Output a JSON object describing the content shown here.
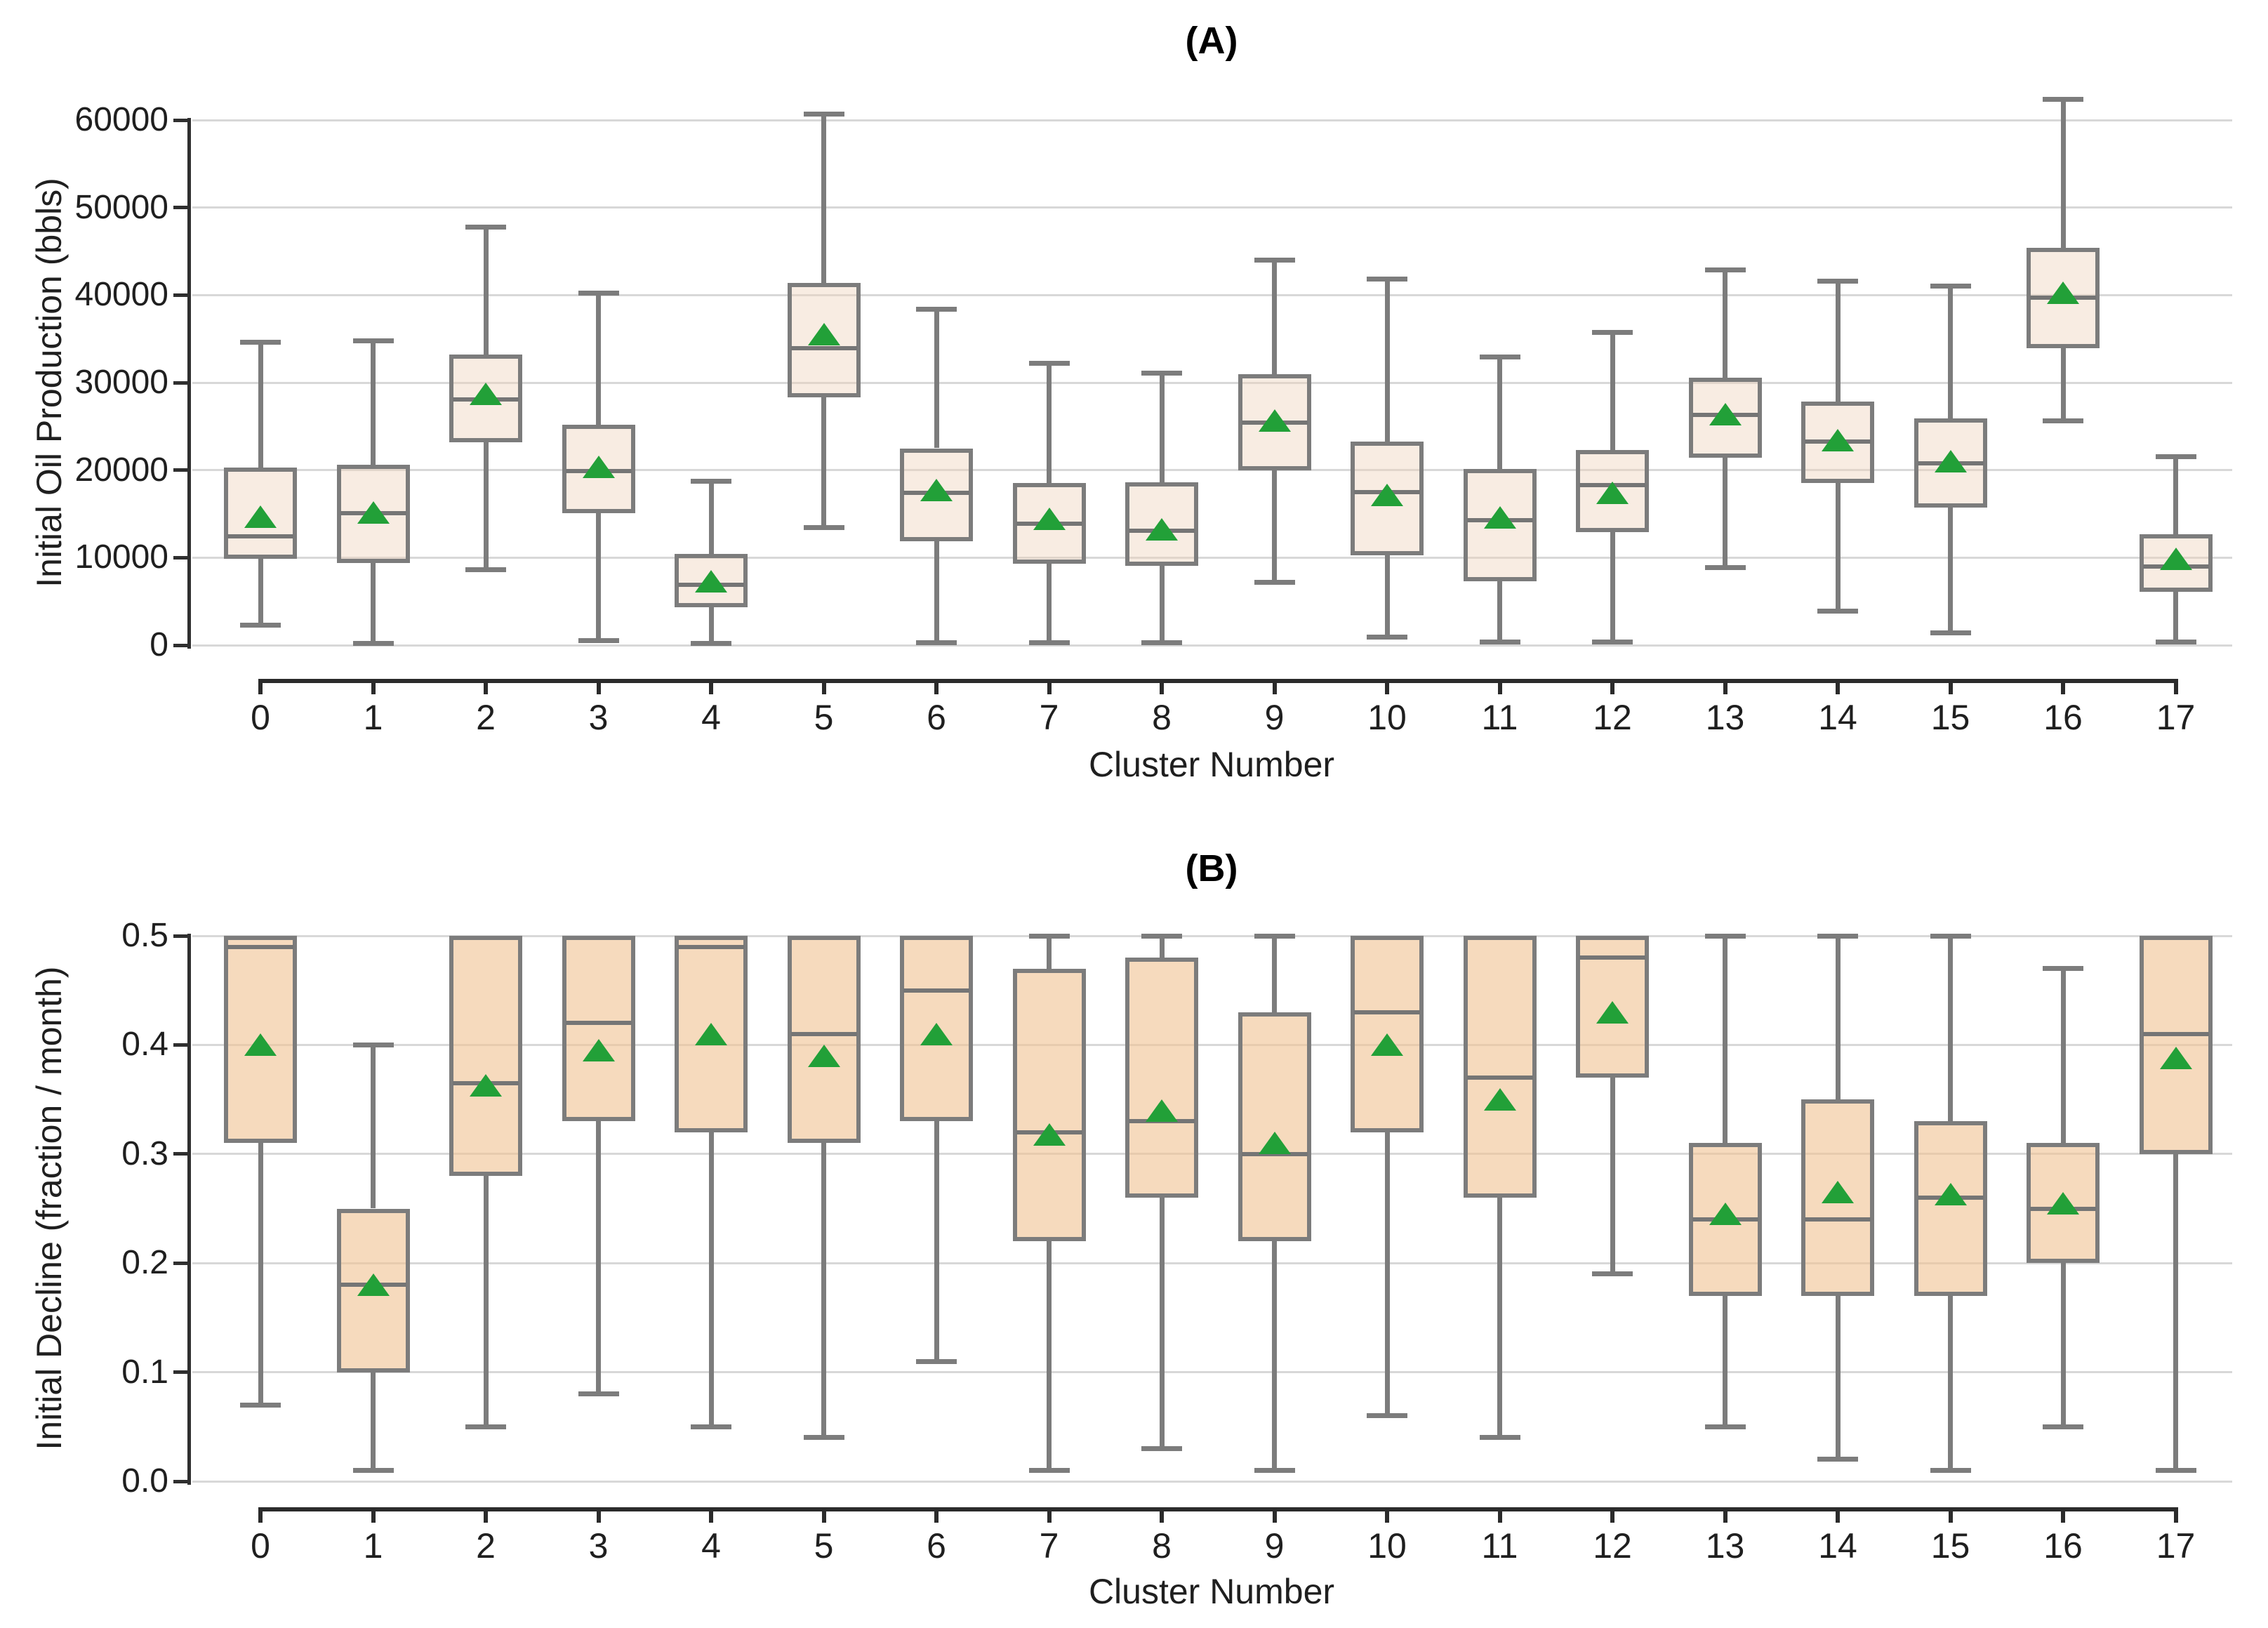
{
  "figure": {
    "background": "#ffffff",
    "panels": [
      "A",
      "B"
    ]
  },
  "colors": {
    "box_fill_A": "rgba(238,209,185,0.42)",
    "box_fill_B": "rgba(240,196,148,0.62)",
    "box_edge": "#7c7c7c",
    "whisker": "#7c7c7c",
    "median": "#757575",
    "mean_marker_green": "#22a038",
    "gridline": "#d8d8d8",
    "axis_spine": "#2f2f2f",
    "text": "#1f1f1f"
  },
  "icons": {
    "mean_marker": "triangle-up-icon"
  },
  "chart_data": [
    {
      "type": "box",
      "panel": "A",
      "title": "(A)",
      "ylabel": "Initial Oil Production (bbls)",
      "xlabel": "Cluster Number",
      "grid": true,
      "legend": "none",
      "categories": [
        "0",
        "1",
        "2",
        "3",
        "4",
        "5",
        "6",
        "7",
        "8",
        "9",
        "10",
        "11",
        "12",
        "13",
        "14",
        "15",
        "16",
        "17"
      ],
      "yticks": [
        0,
        10000,
        20000,
        30000,
        40000,
        50000,
        60000
      ],
      "ytick_labels": [
        "0",
        "10000",
        "20000",
        "30000",
        "40000",
        "50000",
        "60000"
      ],
      "ylim": [
        0,
        63500
      ],
      "stats": [
        {
          "cluster": "0",
          "whisker_low": 2300,
          "q1": 9900,
          "median": 12400,
          "q3": 20300,
          "whisker_high": 34600,
          "mean": 14700
        },
        {
          "cluster": "1",
          "whisker_low": 200,
          "q1": 9400,
          "median": 15100,
          "q3": 20600,
          "whisker_high": 34800,
          "mean": 15200
        },
        {
          "cluster": "2",
          "whisker_low": 8600,
          "q1": 23200,
          "median": 28100,
          "q3": 33200,
          "whisker_high": 47800,
          "mean": 28700
        },
        {
          "cluster": "3",
          "whisker_low": 500,
          "q1": 15100,
          "median": 19900,
          "q3": 25200,
          "whisker_high": 40200,
          "mean": 20400
        },
        {
          "cluster": "4",
          "whisker_low": 200,
          "q1": 4300,
          "median": 6900,
          "q3": 10400,
          "whisker_high": 18700,
          "mean": 7300
        },
        {
          "cluster": "5",
          "whisker_low": 13400,
          "q1": 28300,
          "median": 33900,
          "q3": 41400,
          "whisker_high": 60700,
          "mean": 35500
        },
        {
          "cluster": "6",
          "whisker_low": 300,
          "q1": 11900,
          "median": 17400,
          "q3": 22500,
          "whisker_high": 38400,
          "mean": 17700
        },
        {
          "cluster": "7",
          "whisker_low": 300,
          "q1": 9300,
          "median": 13900,
          "q3": 18500,
          "whisker_high": 32200,
          "mean": 14400
        },
        {
          "cluster": "8",
          "whisker_low": 300,
          "q1": 9100,
          "median": 13100,
          "q3": 18600,
          "whisker_high": 31100,
          "mean": 13200
        },
        {
          "cluster": "9",
          "whisker_low": 7200,
          "q1": 20000,
          "median": 25400,
          "q3": 31000,
          "whisker_high": 44000,
          "mean": 25700
        },
        {
          "cluster": "10",
          "whisker_low": 900,
          "q1": 10300,
          "median": 17500,
          "q3": 23300,
          "whisker_high": 41800,
          "mean": 17200
        },
        {
          "cluster": "11",
          "whisker_low": 400,
          "q1": 7300,
          "median": 14300,
          "q3": 20100,
          "whisker_high": 32900,
          "mean": 14600
        },
        {
          "cluster": "12",
          "whisker_low": 400,
          "q1": 12900,
          "median": 18300,
          "q3": 22300,
          "whisker_high": 35700,
          "mean": 17400
        },
        {
          "cluster": "13",
          "whisker_low": 8900,
          "q1": 21400,
          "median": 26300,
          "q3": 30600,
          "whisker_high": 42900,
          "mean": 26400
        },
        {
          "cluster": "14",
          "whisker_low": 3900,
          "q1": 18500,
          "median": 23300,
          "q3": 27800,
          "whisker_high": 41600,
          "mean": 23400
        },
        {
          "cluster": "15",
          "whisker_low": 1400,
          "q1": 15700,
          "median": 20800,
          "q3": 25900,
          "whisker_high": 41000,
          "mean": 21000
        },
        {
          "cluster": "16",
          "whisker_low": 25600,
          "q1": 33900,
          "median": 39700,
          "q3": 45400,
          "whisker_high": 62400,
          "mean": 40300
        },
        {
          "cluster": "17",
          "whisker_low": 400,
          "q1": 6100,
          "median": 9000,
          "q3": 12700,
          "whisker_high": 21500,
          "mean": 9900
        }
      ]
    },
    {
      "type": "box",
      "panel": "B",
      "title": "(B)",
      "ylabel": "Initial Decline (fraction / month)",
      "xlabel": "Cluster Number",
      "grid": true,
      "legend": "none",
      "categories": [
        "0",
        "1",
        "2",
        "3",
        "4",
        "5",
        "6",
        "7",
        "8",
        "9",
        "10",
        "11",
        "12",
        "13",
        "14",
        "15",
        "16",
        "17"
      ],
      "yticks": [
        0.0,
        0.1,
        0.2,
        0.3,
        0.4,
        0.5
      ],
      "ytick_labels": [
        "0.0",
        "0.1",
        "0.2",
        "0.3",
        "0.4",
        "0.5"
      ],
      "ylim": [
        0,
        0.5
      ],
      "stats": [
        {
          "cluster": "0",
          "whisker_low": 0.07,
          "q1": 0.31,
          "median": 0.49,
          "q3": 0.5,
          "whisker_high": 0.5,
          "mean": 0.4
        },
        {
          "cluster": "1",
          "whisker_low": 0.01,
          "q1": 0.1,
          "median": 0.18,
          "q3": 0.25,
          "whisker_high": 0.4,
          "mean": 0.18
        },
        {
          "cluster": "2",
          "whisker_low": 0.05,
          "q1": 0.28,
          "median": 0.365,
          "q3": 0.5,
          "whisker_high": 0.5,
          "mean": 0.363
        },
        {
          "cluster": "3",
          "whisker_low": 0.08,
          "q1": 0.33,
          "median": 0.42,
          "q3": 0.5,
          "whisker_high": 0.5,
          "mean": 0.395
        },
        {
          "cluster": "4",
          "whisker_low": 0.05,
          "q1": 0.32,
          "median": 0.49,
          "q3": 0.5,
          "whisker_high": 0.5,
          "mean": 0.41
        },
        {
          "cluster": "5",
          "whisker_low": 0.04,
          "q1": 0.31,
          "median": 0.41,
          "q3": 0.5,
          "whisker_high": 0.5,
          "mean": 0.39
        },
        {
          "cluster": "6",
          "whisker_low": 0.11,
          "q1": 0.33,
          "median": 0.45,
          "q3": 0.5,
          "whisker_high": 0.5,
          "mean": 0.41
        },
        {
          "cluster": "7",
          "whisker_low": 0.01,
          "q1": 0.22,
          "median": 0.32,
          "q3": 0.47,
          "whisker_high": 0.5,
          "mean": 0.318
        },
        {
          "cluster": "8",
          "whisker_low": 0.03,
          "q1": 0.26,
          "median": 0.33,
          "q3": 0.48,
          "whisker_high": 0.5,
          "mean": 0.34
        },
        {
          "cluster": "9",
          "whisker_low": 0.01,
          "q1": 0.22,
          "median": 0.3,
          "q3": 0.43,
          "whisker_high": 0.5,
          "mean": 0.31
        },
        {
          "cluster": "10",
          "whisker_low": 0.06,
          "q1": 0.32,
          "median": 0.43,
          "q3": 0.5,
          "whisker_high": 0.5,
          "mean": 0.4
        },
        {
          "cluster": "11",
          "whisker_low": 0.04,
          "q1": 0.26,
          "median": 0.37,
          "q3": 0.5,
          "whisker_high": 0.5,
          "mean": 0.35
        },
        {
          "cluster": "12",
          "whisker_low": 0.19,
          "q1": 0.37,
          "median": 0.48,
          "q3": 0.5,
          "whisker_high": 0.5,
          "mean": 0.43
        },
        {
          "cluster": "13",
          "whisker_low": 0.05,
          "q1": 0.17,
          "median": 0.24,
          "q3": 0.31,
          "whisker_high": 0.5,
          "mean": 0.245
        },
        {
          "cluster": "14",
          "whisker_low": 0.02,
          "q1": 0.17,
          "median": 0.24,
          "q3": 0.35,
          "whisker_high": 0.5,
          "mean": 0.265
        },
        {
          "cluster": "15",
          "whisker_low": 0.01,
          "q1": 0.17,
          "median": 0.26,
          "q3": 0.33,
          "whisker_high": 0.5,
          "mean": 0.263
        },
        {
          "cluster": "16",
          "whisker_low": 0.05,
          "q1": 0.2,
          "median": 0.25,
          "q3": 0.31,
          "whisker_high": 0.47,
          "mean": 0.255
        },
        {
          "cluster": "17",
          "whisker_low": 0.01,
          "q1": 0.3,
          "median": 0.41,
          "q3": 0.5,
          "whisker_high": 0.5,
          "mean": 0.388
        }
      ]
    }
  ]
}
